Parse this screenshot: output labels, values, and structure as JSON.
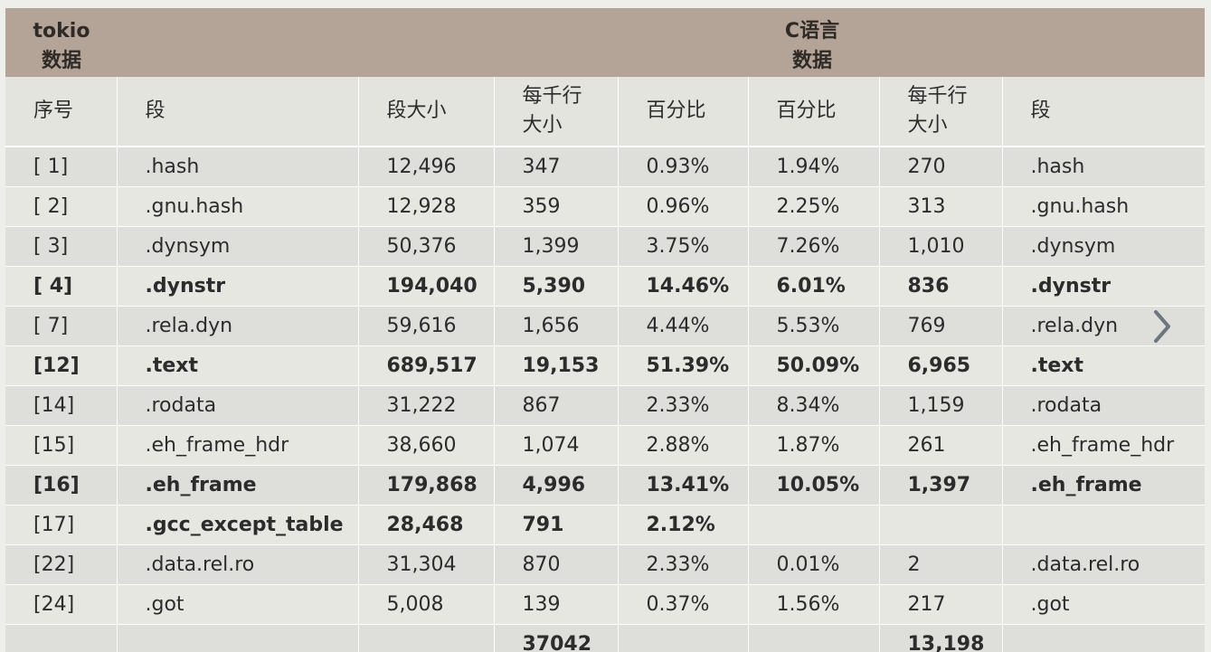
{
  "group_headers": {
    "left": [
      "tokio",
      "数据"
    ],
    "right": [
      "C语言",
      "数据"
    ]
  },
  "columns": [
    [
      "序号"
    ],
    [
      "段"
    ],
    [
      "段大小"
    ],
    [
      "每千行",
      "大小"
    ],
    [
      "百分比"
    ],
    [
      "百分比"
    ],
    [
      "每千行",
      "大小"
    ],
    [
      "段"
    ]
  ],
  "rows": [
    {
      "bold": false,
      "cells": [
        "[ 1]",
        ".hash",
        "12,496",
        "347",
        "0.93%",
        "1.94%",
        "270",
        ".hash"
      ]
    },
    {
      "bold": false,
      "cells": [
        "[ 2]",
        ".gnu.hash",
        "12,928",
        "359",
        "0.96%",
        "2.25%",
        "313",
        ".gnu.hash"
      ]
    },
    {
      "bold": false,
      "cells": [
        "[ 3]",
        ".dynsym",
        "50,376",
        "1,399",
        "3.75%",
        "7.26%",
        "1,010",
        ".dynsym"
      ]
    },
    {
      "bold": true,
      "cells": [
        "[ 4]",
        ".dynstr",
        "194,040",
        "5,390",
        "14.46%",
        "6.01%",
        "836",
        ".dynstr"
      ]
    },
    {
      "bold": false,
      "cells": [
        "[ 7]",
        ".rela.dyn",
        "59,616",
        "1,656",
        "4.44%",
        "5.53%",
        "769",
        ".rela.dyn"
      ]
    },
    {
      "bold": true,
      "cells": [
        "[12]",
        ".text",
        "689,517",
        "19,153",
        "51.39%",
        "50.09%",
        "6,965",
        ".text"
      ]
    },
    {
      "bold": false,
      "cells": [
        "[14]",
        ".rodata",
        "31,222",
        "867",
        "2.33%",
        "8.34%",
        "1,159",
        ".rodata"
      ]
    },
    {
      "bold": false,
      "cells": [
        "[15]",
        ".eh_frame_hdr",
        "38,660",
        "1,074",
        "2.88%",
        "1.87%",
        "261",
        ".eh_frame_hdr"
      ]
    },
    {
      "bold": true,
      "cells": [
        "[16]",
        ".eh_frame",
        "179,868",
        "4,996",
        "13.41%",
        "10.05%",
        "1,397",
        ".eh_frame"
      ]
    },
    {
      "bold": false,
      "cells": [
        "[17]",
        ".gcc_except_table",
        "28,468",
        "791",
        "2.12%",
        "",
        "",
        ""
      ],
      "bold_from": 1
    },
    {
      "bold": false,
      "cells": [
        "[22]",
        ".data.rel.ro",
        "31,304",
        "870",
        "2.33%",
        "0.01%",
        "2",
        ".data.rel.ro"
      ]
    },
    {
      "bold": false,
      "cells": [
        "[24]",
        ".got",
        "5,008",
        "139",
        "0.37%",
        "1.56%",
        "217",
        ".got"
      ]
    },
    {
      "bold": false,
      "cells": [
        "",
        "",
        "",
        "37042",
        "",
        "",
        "13,198",
        ""
      ],
      "bold_cols": [
        3,
        6
      ]
    }
  ],
  "icons": {
    "next": "chevron-right-icon"
  },
  "colors": {
    "header_band": "#b4a397",
    "row_dark": "#dededa",
    "row_light": "#e7e7e2",
    "arrow": "#6f7680"
  }
}
